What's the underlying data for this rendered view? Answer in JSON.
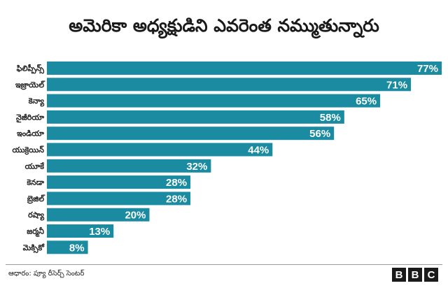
{
  "title": "అమెరికా అధ్యక్షుడిని ఎవరెంత నమ్ముతున్నారు",
  "source": "ఆధారం: ప్యూ రీసెర్చ్ సెంటర్",
  "logo": {
    "letters": [
      "B",
      "B",
      "C"
    ]
  },
  "colors": {
    "bar": "#1a8ba0",
    "value_text": "#ffffff",
    "category_text": "#222222"
  },
  "chart_data": {
    "type": "bar",
    "orientation": "horizontal",
    "categories": [
      "ఫిలిప్పీన్స్",
      "ఇజ్రాయెల్",
      "కెన్యా",
      "నైజీరియా",
      "ఇండియా",
      "యుక్రెయిన్",
      "యూకే",
      "కెనడా",
      "బ్రెజిల్",
      "రష్యా",
      "జర్మనీ",
      "మెక్సికో"
    ],
    "values": [
      77,
      71,
      65,
      58,
      56,
      44,
      32,
      28,
      28,
      20,
      13,
      8
    ],
    "value_labels": [
      "77%",
      "71%",
      "65%",
      "58%",
      "56%",
      "44%",
      "32%",
      "28%",
      "28%",
      "20%",
      "13%",
      "8%"
    ],
    "unit": "%",
    "xlim": [
      0,
      77
    ],
    "grid": false,
    "legend": "none"
  }
}
